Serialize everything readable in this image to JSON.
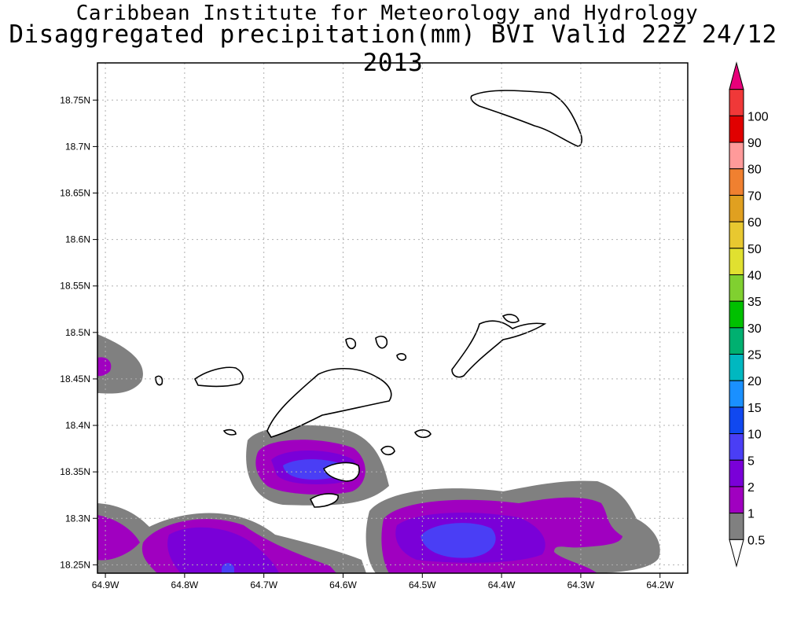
{
  "header": {
    "institute": "Caribbean Institute for Meteorology and Hydrology",
    "product": "Disaggregated precipitation(mm) BVI Valid 22Z 24/12 2013"
  },
  "map": {
    "lon_range": [
      -64.91,
      -64.165
    ],
    "lat_range": [
      18.241,
      18.79
    ],
    "lon_ticks": [
      {
        "value": -64.9,
        "label": "64.9W"
      },
      {
        "value": -64.8,
        "label": "64.8W"
      },
      {
        "value": -64.7,
        "label": "64.7W"
      },
      {
        "value": -64.6,
        "label": "64.6W"
      },
      {
        "value": -64.5,
        "label": "64.5W"
      },
      {
        "value": -64.4,
        "label": "64.4W"
      },
      {
        "value": -64.3,
        "label": "64.3W"
      },
      {
        "value": -64.2,
        "label": "64.2W"
      }
    ],
    "lat_ticks": [
      {
        "value": 18.75,
        "label": "18.75N"
      },
      {
        "value": 18.7,
        "label": "18.7N"
      },
      {
        "value": 18.65,
        "label": "18.65N"
      },
      {
        "value": 18.6,
        "label": "18.6N"
      },
      {
        "value": 18.55,
        "label": "18.55N"
      },
      {
        "value": 18.5,
        "label": "18.5N"
      },
      {
        "value": 18.45,
        "label": "18.45N"
      },
      {
        "value": 18.4,
        "label": "18.4N"
      },
      {
        "value": 18.35,
        "label": "18.35N"
      },
      {
        "value": 18.3,
        "label": "18.3N"
      },
      {
        "value": 18.25,
        "label": "18.25N"
      }
    ],
    "grid": true,
    "precip_cells": [
      {
        "level": "0.5",
        "color": "#808080"
      },
      {
        "level": "1",
        "color": "#a000c0"
      },
      {
        "level": "2",
        "color": "#7a00d8"
      },
      {
        "level": "5",
        "color": "#4a3ef5"
      }
    ]
  },
  "colorbar": {
    "levels": [
      {
        "label": "",
        "color": "#e8007a"
      },
      {
        "label": "100",
        "color": "#f03838"
      },
      {
        "label": "90",
        "color": "#e00000"
      },
      {
        "label": "80",
        "color": "#ff9a9a"
      },
      {
        "label": "70",
        "color": "#f08030"
      },
      {
        "label": "60",
        "color": "#e0a020"
      },
      {
        "label": "50",
        "color": "#e8c830"
      },
      {
        "label": "40",
        "color": "#e0e030"
      },
      {
        "label": "35",
        "color": "#80d030"
      },
      {
        "label": "30",
        "color": "#00c000"
      },
      {
        "label": "25",
        "color": "#00b070"
      },
      {
        "label": "20",
        "color": "#00b8c0"
      },
      {
        "label": "15",
        "color": "#1a90ff"
      },
      {
        "label": "10",
        "color": "#1048f0"
      },
      {
        "label": "5",
        "color": "#4a3ef5"
      },
      {
        "label": "2",
        "color": "#7a00d8"
      },
      {
        "label": "1",
        "color": "#a000c0"
      },
      {
        "label": "0.5",
        "color": "#808080"
      },
      {
        "label": "",
        "color": "#ffffff"
      }
    ]
  }
}
